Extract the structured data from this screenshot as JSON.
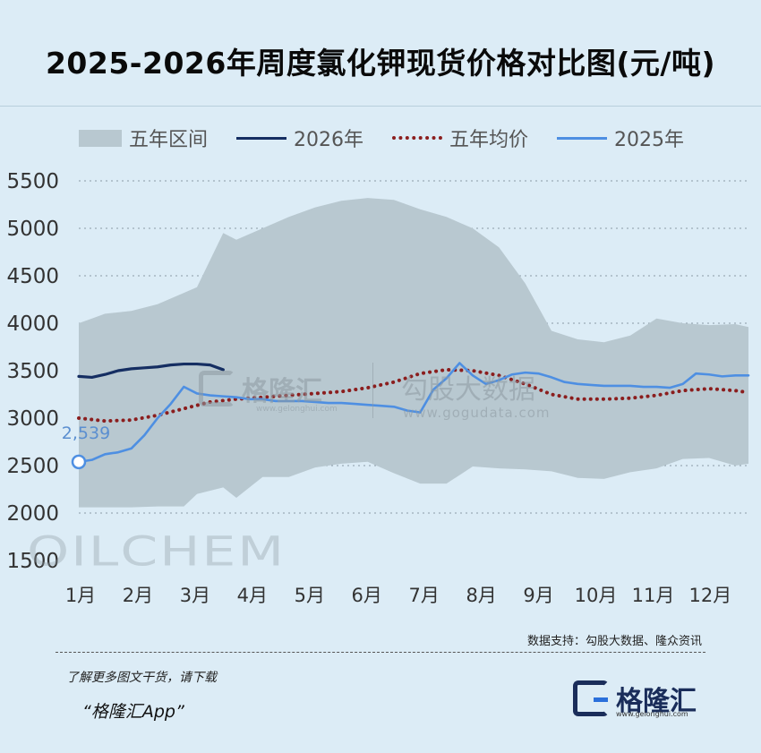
{
  "title": "2025-2026年周度氯化钾现货价格对比图(元/吨)",
  "legend": {
    "band": "五年区间",
    "y2026": "2026年",
    "avg": "五年均价",
    "y2025": "2025年"
  },
  "chart_data": {
    "type": "line",
    "title": "2025-2026年周度氯化钾现货价格对比图(元/吨)",
    "unit": "元/吨",
    "x_unit": "week",
    "x_ticks": [
      "1月",
      "2月",
      "3月",
      "4月",
      "5月",
      "6月",
      "7月",
      "8月",
      "9月",
      "10月",
      "11月",
      "12月"
    ],
    "x_range": [
      1,
      52
    ],
    "ylim": [
      1500,
      5500
    ],
    "y_ticks": [
      1500,
      2000,
      2500,
      3000,
      3500,
      4000,
      4500,
      5000,
      5500
    ],
    "grid": "horizontal dotted",
    "legend_position": "top",
    "annotation": "2,539",
    "band": {
      "name": "五年区间",
      "x": [
        1,
        2,
        3,
        5,
        7,
        9,
        10,
        12,
        13,
        15,
        17,
        19,
        21,
        23,
        25,
        27,
        29,
        31,
        33,
        35,
        37,
        39,
        41,
        43,
        45,
        47,
        49,
        51,
        52
      ],
      "upper": [
        4000,
        4050,
        4100,
        4130,
        4200,
        4320,
        4380,
        4950,
        4880,
        5000,
        5120,
        5220,
        5290,
        5320,
        5300,
        5200,
        5120,
        5000,
        4800,
        4420,
        3920,
        3830,
        3800,
        3870,
        4050,
        4000,
        3980,
        3990,
        3960
      ],
      "lower": [
        2060,
        2060,
        2060,
        2060,
        2070,
        2070,
        2200,
        2270,
        2160,
        2380,
        2380,
        2480,
        2520,
        2540,
        2420,
        2310,
        2310,
        2490,
        2470,
        2460,
        2440,
        2370,
        2360,
        2430,
        2470,
        2570,
        2580,
        2500,
        2520
      ]
    },
    "series": [
      {
        "name": "2026年",
        "color": "#152e62",
        "x": [
          1,
          2,
          3,
          4,
          5,
          6,
          7,
          8,
          9,
          10,
          11,
          12
        ],
        "values": [
          3440,
          3430,
          3460,
          3500,
          3520,
          3530,
          3540,
          3560,
          3570,
          3570,
          3560,
          3510
        ]
      },
      {
        "name": "五年均价",
        "color": "#8b1e1e",
        "x": [
          1,
          3,
          5,
          7,
          9,
          11,
          13,
          15,
          17,
          19,
          21,
          23,
          25,
          27,
          29,
          31,
          33,
          35,
          37,
          39,
          41,
          43,
          45,
          47,
          49,
          51,
          52
        ],
        "values": [
          3000,
          2970,
          2980,
          3030,
          3100,
          3170,
          3200,
          3220,
          3240,
          3260,
          3280,
          3320,
          3380,
          3470,
          3510,
          3500,
          3450,
          3360,
          3250,
          3200,
          3200,
          3210,
          3240,
          3290,
          3310,
          3290,
          3270
        ]
      },
      {
        "name": "2025年",
        "color": "#4e8fe2",
        "x": [
          1,
          2,
          3,
          4,
          5,
          6,
          7,
          8,
          9,
          10,
          11,
          12,
          13,
          14,
          15,
          16,
          17,
          18,
          19,
          20,
          21,
          22,
          23,
          24,
          25,
          26,
          27,
          28,
          29,
          30,
          31,
          32,
          33,
          34,
          35,
          36,
          37,
          38,
          39,
          40,
          41,
          42,
          43,
          44,
          45,
          46,
          47,
          48,
          49,
          50,
          51,
          52
        ],
        "values": [
          2539,
          2560,
          2620,
          2640,
          2680,
          2820,
          3000,
          3150,
          3330,
          3260,
          3240,
          3230,
          3220,
          3200,
          3200,
          3180,
          3180,
          3180,
          3170,
          3160,
          3160,
          3150,
          3140,
          3130,
          3120,
          3080,
          3060,
          3300,
          3420,
          3580,
          3450,
          3360,
          3400,
          3460,
          3480,
          3470,
          3430,
          3380,
          3360,
          3350,
          3340,
          3340,
          3340,
          3330,
          3330,
          3320,
          3360,
          3470,
          3460,
          3440,
          3450,
          3450
        ]
      }
    ]
  },
  "watermarks": {
    "gelonghui": "格隆汇",
    "gelonghui_url": "www.gelonghui.com",
    "gogudata": "勾股大数据",
    "gogudata_url": "www.gogudata.com",
    "oilchem": "OILCHEM"
  },
  "source": "数据支持：勾股大数据、隆众资讯",
  "promo": {
    "line1": "了解更多图文干货，请下载",
    "line2": "“格隆汇App”"
  },
  "brand": {
    "name": "格隆汇",
    "url": "www.gelonghui.com",
    "dark": "#1a2d5a",
    "accent": "#2a6fdb"
  }
}
